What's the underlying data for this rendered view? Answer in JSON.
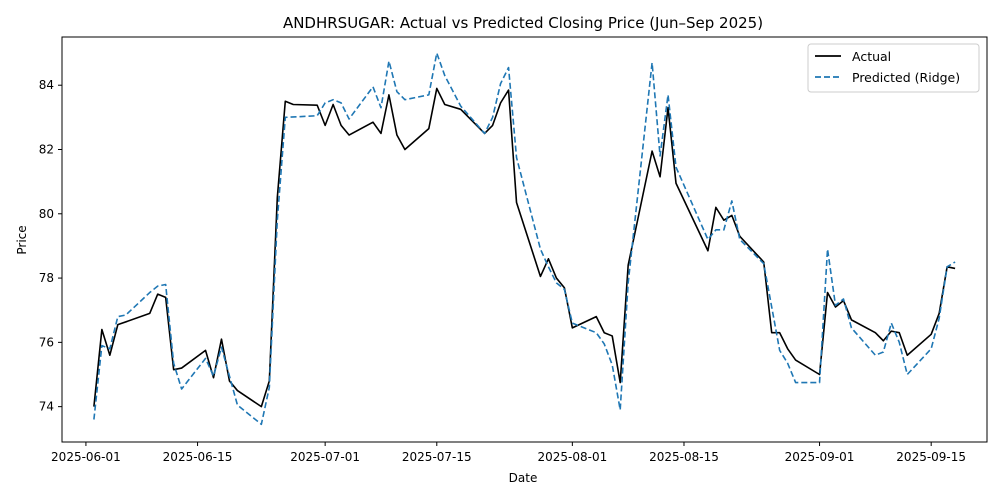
{
  "chart_data": {
    "type": "line",
    "title": "ANDHRSUGAR: Actual vs Predicted Closing Price (Jun–Sep 2025)",
    "xlabel": "Date",
    "ylabel": "Price",
    "x_range": [
      "2025-05-29",
      "2025-09-22"
    ],
    "ylim": [
      72.9,
      85.5
    ],
    "x_ticks": [
      "2025-06-01",
      "2025-06-15",
      "2025-07-01",
      "2025-07-15",
      "2025-08-01",
      "2025-08-15",
      "2025-09-01",
      "2025-09-15"
    ],
    "y_ticks": [
      74,
      76,
      78,
      80,
      82,
      84
    ],
    "grid": false,
    "legend_position": "top-right",
    "series": [
      {
        "name": "Actual",
        "color": "#000000",
        "style": "solid",
        "points": [
          [
            "2025-06-02",
            74.0
          ],
          [
            "2025-06-03",
            76.4
          ],
          [
            "2025-06-04",
            75.6
          ],
          [
            "2025-06-05",
            76.55
          ],
          [
            "2025-06-09",
            76.9
          ],
          [
            "2025-06-10",
            77.5
          ],
          [
            "2025-06-11",
            77.4
          ],
          [
            "2025-06-12",
            75.15
          ],
          [
            "2025-06-13",
            75.2
          ],
          [
            "2025-06-16",
            75.75
          ],
          [
            "2025-06-17",
            74.9
          ],
          [
            "2025-06-18",
            76.1
          ],
          [
            "2025-06-19",
            74.8
          ],
          [
            "2025-06-20",
            74.5
          ],
          [
            "2025-06-23",
            74.0
          ],
          [
            "2025-06-24",
            74.8
          ],
          [
            "2025-06-25",
            80.5
          ],
          [
            "2025-06-26",
            83.5
          ],
          [
            "2025-06-27",
            83.4
          ],
          [
            "2025-06-30",
            83.38
          ],
          [
            "2025-07-01",
            82.75
          ],
          [
            "2025-07-02",
            83.4
          ],
          [
            "2025-07-03",
            82.75
          ],
          [
            "2025-07-04",
            82.45
          ],
          [
            "2025-07-07",
            82.85
          ],
          [
            "2025-07-08",
            82.5
          ],
          [
            "2025-07-09",
            83.7
          ],
          [
            "2025-07-10",
            82.45
          ],
          [
            "2025-07-11",
            82.0
          ],
          [
            "2025-07-14",
            82.65
          ],
          [
            "2025-07-15",
            83.9
          ],
          [
            "2025-07-16",
            83.4
          ],
          [
            "2025-07-18",
            83.25
          ],
          [
            "2025-07-21",
            82.5
          ],
          [
            "2025-07-22",
            82.75
          ],
          [
            "2025-07-23",
            83.45
          ],
          [
            "2025-07-24",
            83.85
          ],
          [
            "2025-07-25",
            80.35
          ],
          [
            "2025-07-28",
            78.05
          ],
          [
            "2025-07-29",
            78.6
          ],
          [
            "2025-07-30",
            78.0
          ],
          [
            "2025-07-31",
            77.7
          ],
          [
            "2025-08-01",
            76.45
          ],
          [
            "2025-08-04",
            76.8
          ],
          [
            "2025-08-05",
            76.3
          ],
          [
            "2025-08-06",
            76.2
          ],
          [
            "2025-08-07",
            74.75
          ],
          [
            "2025-08-08",
            78.4
          ],
          [
            "2025-08-11",
            81.95
          ],
          [
            "2025-08-12",
            81.15
          ],
          [
            "2025-08-13",
            83.3
          ],
          [
            "2025-08-14",
            80.95
          ],
          [
            "2025-08-18",
            78.85
          ],
          [
            "2025-08-19",
            80.2
          ],
          [
            "2025-08-20",
            79.8
          ],
          [
            "2025-08-21",
            79.95
          ],
          [
            "2025-08-22",
            79.3
          ],
          [
            "2025-08-25",
            78.5
          ],
          [
            "2025-08-26",
            76.3
          ],
          [
            "2025-08-27",
            76.3
          ],
          [
            "2025-08-28",
            75.8
          ],
          [
            "2025-08-29",
            75.45
          ],
          [
            "2025-09-01",
            75.0
          ],
          [
            "2025-09-02",
            77.55
          ],
          [
            "2025-09-03",
            77.1
          ],
          [
            "2025-09-04",
            77.3
          ],
          [
            "2025-09-05",
            76.7
          ],
          [
            "2025-09-08",
            76.3
          ],
          [
            "2025-09-09",
            76.05
          ],
          [
            "2025-09-10",
            76.35
          ],
          [
            "2025-09-11",
            76.3
          ],
          [
            "2025-09-12",
            75.6
          ],
          [
            "2025-09-15",
            76.25
          ],
          [
            "2025-09-16",
            76.9
          ],
          [
            "2025-09-17",
            78.35
          ],
          [
            "2025-09-18",
            78.3
          ]
        ]
      },
      {
        "name": "Predicted (Ridge)",
        "color": "#1f77b4",
        "style": "dashed",
        "points": [
          [
            "2025-06-02",
            73.6
          ],
          [
            "2025-06-03",
            75.9
          ],
          [
            "2025-06-04",
            75.8
          ],
          [
            "2025-06-05",
            76.8
          ],
          [
            "2025-06-06",
            76.85
          ],
          [
            "2025-06-09",
            77.55
          ],
          [
            "2025-06-10",
            77.75
          ],
          [
            "2025-06-11",
            77.8
          ],
          [
            "2025-06-12",
            75.35
          ],
          [
            "2025-06-13",
            74.55
          ],
          [
            "2025-06-16",
            75.5
          ],
          [
            "2025-06-17",
            74.95
          ],
          [
            "2025-06-18",
            75.85
          ],
          [
            "2025-06-19",
            74.95
          ],
          [
            "2025-06-20",
            74.05
          ],
          [
            "2025-06-23",
            73.45
          ],
          [
            "2025-06-24",
            74.6
          ],
          [
            "2025-06-25",
            79.8
          ],
          [
            "2025-06-26",
            83.0
          ],
          [
            "2025-06-30",
            83.05
          ],
          [
            "2025-07-01",
            83.45
          ],
          [
            "2025-07-02",
            83.55
          ],
          [
            "2025-07-03",
            83.45
          ],
          [
            "2025-07-04",
            82.95
          ],
          [
            "2025-07-07",
            83.95
          ],
          [
            "2025-07-08",
            83.3
          ],
          [
            "2025-07-09",
            84.75
          ],
          [
            "2025-07-10",
            83.8
          ],
          [
            "2025-07-11",
            83.55
          ],
          [
            "2025-07-14",
            83.7
          ],
          [
            "2025-07-15",
            85.0
          ],
          [
            "2025-07-16",
            84.3
          ],
          [
            "2025-07-18",
            83.35
          ],
          [
            "2025-07-21",
            82.5
          ],
          [
            "2025-07-22",
            83.0
          ],
          [
            "2025-07-23",
            84.05
          ],
          [
            "2025-07-24",
            84.55
          ],
          [
            "2025-07-25",
            81.75
          ],
          [
            "2025-07-28",
            78.9
          ],
          [
            "2025-07-29",
            78.35
          ],
          [
            "2025-07-30",
            77.85
          ],
          [
            "2025-07-31",
            77.65
          ],
          [
            "2025-08-01",
            76.6
          ],
          [
            "2025-08-04",
            76.3
          ],
          [
            "2025-08-05",
            75.95
          ],
          [
            "2025-08-06",
            75.3
          ],
          [
            "2025-08-07",
            73.9
          ],
          [
            "2025-08-08",
            77.85
          ],
          [
            "2025-08-11",
            84.7
          ],
          [
            "2025-08-12",
            81.8
          ],
          [
            "2025-08-13",
            83.7
          ],
          [
            "2025-08-14",
            81.45
          ],
          [
            "2025-08-18",
            79.2
          ],
          [
            "2025-08-19",
            79.5
          ],
          [
            "2025-08-20",
            79.5
          ],
          [
            "2025-08-21",
            80.4
          ],
          [
            "2025-08-22",
            79.2
          ],
          [
            "2025-08-25",
            78.45
          ],
          [
            "2025-08-26",
            77.1
          ],
          [
            "2025-08-27",
            75.75
          ],
          [
            "2025-08-28",
            75.35
          ],
          [
            "2025-08-29",
            74.75
          ],
          [
            "2025-09-01",
            74.75
          ],
          [
            "2025-09-02",
            78.9
          ],
          [
            "2025-09-03",
            77.15
          ],
          [
            "2025-09-04",
            77.35
          ],
          [
            "2025-09-05",
            76.45
          ],
          [
            "2025-09-08",
            75.6
          ],
          [
            "2025-09-09",
            75.7
          ],
          [
            "2025-09-10",
            76.6
          ],
          [
            "2025-09-11",
            76.0
          ],
          [
            "2025-09-12",
            75.0
          ],
          [
            "2025-09-15",
            75.8
          ],
          [
            "2025-09-16",
            76.75
          ],
          [
            "2025-09-17",
            78.35
          ],
          [
            "2025-09-18",
            78.5
          ]
        ]
      }
    ]
  }
}
